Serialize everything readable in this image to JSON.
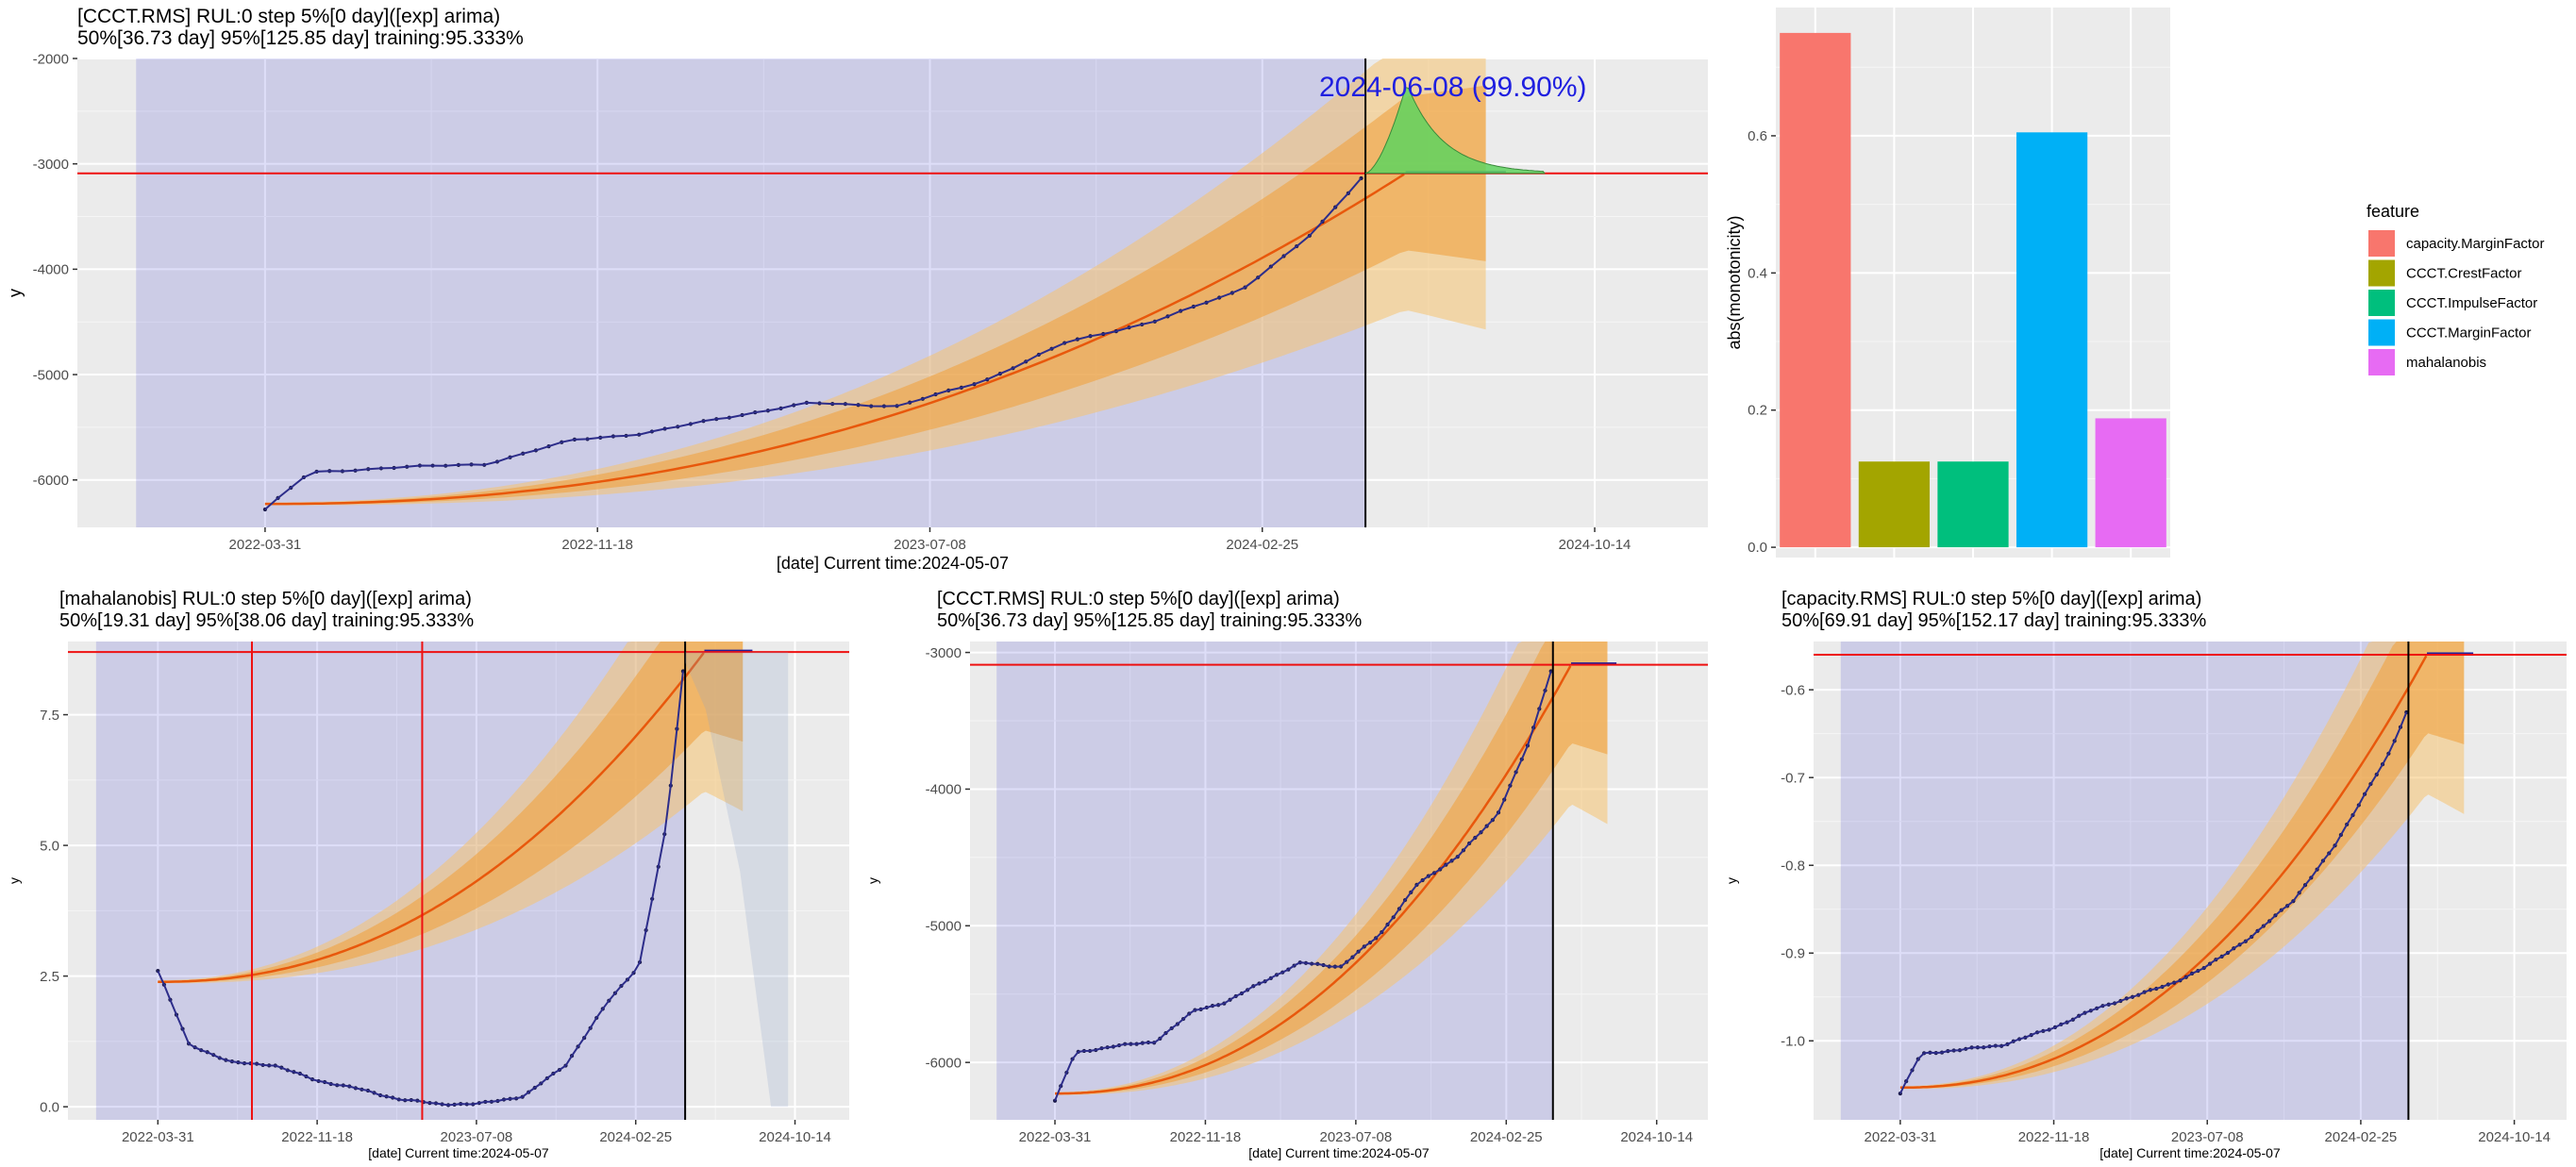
{
  "top_chart": {
    "title_line1": "[CCCT.RMS] RUL:0 step 5%[0 day]([exp] arima)",
    "title_line2": "50%[36.73 day] 95%[125.85 day] training:95.333%",
    "xlabel": "[date] Current time:2024-05-07",
    "ylabel": "y",
    "annotation": "2024-06-08 (99.90%)"
  },
  "mid_chart_left": {
    "title_line1": "[mahalanobis] RUL:0 step 5%[0 day]([exp] arima)",
    "title_line2": "50%[19.31 day] 95%[38.06 day] training:95.333%",
    "xlabel": "[date] Current time:2024-05-07",
    "ylabel": "y"
  },
  "mid_chart_center": {
    "title_line1": "[CCCT.RMS] RUL:0 step 5%[0 day]([exp] arima)",
    "title_line2": "50%[36.73 day] 95%[125.85 day] training:95.333%",
    "xlabel": "[date] Current time:2024-05-07",
    "ylabel": "y"
  },
  "mid_chart_right": {
    "title_line1": "[capacity.RMS] RUL:0 step 5%[0 day]([exp] arima)",
    "title_line2": "50%[69.91 day] 95%[152.17 day] training:95.333%",
    "xlabel": "[date] Current time:2024-05-07",
    "ylabel": "y"
  },
  "bar_chart": {
    "ylabel": "abs(monotonicity)",
    "legend_title": "feature"
  },
  "chart_data": [
    {
      "id": "top",
      "type": "line",
      "x_ticks": [
        "2022-03-31",
        "2022-11-18",
        "2023-07-08",
        "2024-02-25",
        "2024-10-14"
      ],
      "y_ticks": [
        "-2000",
        "-3000",
        "-4000",
        "-5000",
        "-6000"
      ],
      "ylim": [
        -6450,
        -2000
      ],
      "xlim": [
        "2021-11-20",
        "2025-01-01"
      ],
      "threshold": -3090,
      "current_time": "2024-05-07",
      "training_start": "2021-12-31",
      "series": [
        {
          "name": "observed",
          "x": [
            "2022-03-31",
            "2022-05-01",
            "2022-07-01",
            "2022-09-01",
            "2022-11-01",
            "2022-12-20",
            "2023-02-10",
            "2023-04-15",
            "2023-06-15",
            "2023-08-15",
            "2023-10-10",
            "2023-12-10",
            "2024-02-10",
            "2024-04-01",
            "2024-05-07"
          ],
          "y": [
            -6280,
            -5930,
            -5880,
            -5850,
            -5620,
            -5560,
            -5420,
            -5270,
            -5300,
            -5060,
            -4700,
            -4500,
            -4200,
            -3650,
            -3090
          ]
        },
        {
          "name": "fit",
          "x": [
            "2022-03-31",
            "2022-07-01",
            "2022-11-01",
            "2023-03-01",
            "2023-07-08",
            "2023-11-01",
            "2024-02-25",
            "2024-05-07",
            "2024-06-08"
          ],
          "y": [
            -5980,
            -5880,
            -5720,
            -5470,
            -5130,
            -4680,
            -4080,
            -3480,
            -3090
          ]
        }
      ]
    },
    {
      "id": "mahalanobis",
      "type": "line",
      "x_ticks": [
        "2022-03-31",
        "2022-11-18",
        "2023-07-08",
        "2024-02-25",
        "2024-10-14"
      ],
      "y_ticks": [
        "0.0",
        "2.5",
        "5.0",
        "7.5"
      ],
      "ylim": [
        -0.25,
        8.9
      ],
      "xlim": [
        "2021-11-20",
        "2025-01-01"
      ],
      "threshold": 8.7,
      "vlines": [
        "2022-08-15",
        "2023-04-20"
      ],
      "current_time": "2024-05-07",
      "training_start": "2021-12-31",
      "series": [
        {
          "name": "observed",
          "x": [
            "2022-03-31",
            "2022-05-15",
            "2022-07-15",
            "2022-09-15",
            "2022-11-18",
            "2023-01-15",
            "2023-03-15",
            "2023-05-15",
            "2023-07-08",
            "2023-09-15",
            "2023-11-15",
            "2024-01-15",
            "2024-03-01",
            "2024-04-10",
            "2024-05-07"
          ],
          "y": [
            2.6,
            1.2,
            0.85,
            0.8,
            0.5,
            0.35,
            0.15,
            0.05,
            0.05,
            0.2,
            0.8,
            2.0,
            2.7,
            5.4,
            8.7
          ]
        }
      ]
    },
    {
      "id": "ccct_rms",
      "type": "line",
      "x_ticks": [
        "2022-03-31",
        "2022-11-18",
        "2023-07-08",
        "2024-02-25",
        "2024-10-14"
      ],
      "y_ticks": [
        "-3000",
        "-4000",
        "-5000",
        "-6000"
      ],
      "ylim": [
        -6420,
        -2920
      ],
      "xlim": [
        "2021-11-20",
        "2025-01-01"
      ],
      "threshold": -3090,
      "current_time": "2024-05-07",
      "training_start": "2021-12-31",
      "series": [
        {
          "name": "observed",
          "x": [
            "2022-03-31",
            "2022-05-01",
            "2022-07-01",
            "2022-09-01",
            "2022-11-01",
            "2022-12-20",
            "2023-02-10",
            "2023-04-15",
            "2023-06-15",
            "2023-08-15",
            "2023-10-10",
            "2023-12-10",
            "2024-02-10",
            "2024-04-01",
            "2024-05-07"
          ],
          "y": [
            -6280,
            -5930,
            -5880,
            -5850,
            -5620,
            -5560,
            -5420,
            -5270,
            -5300,
            -5060,
            -4700,
            -4500,
            -4200,
            -3650,
            -3090
          ]
        }
      ]
    },
    {
      "id": "capacity_rms",
      "type": "line",
      "x_ticks": [
        "2022-03-31",
        "2022-11-18",
        "2023-07-08",
        "2024-02-25",
        "2024-10-14"
      ],
      "y_ticks": [
        "-0.6",
        "-0.7",
        "-0.8",
        "-0.9",
        "-1.0"
      ],
      "ylim": [
        -1.09,
        -0.545
      ],
      "xlim": [
        "2021-11-20",
        "2025-01-01"
      ],
      "threshold": -0.56,
      "current_time": "2024-05-07",
      "training_start": "2021-12-31",
      "series": [
        {
          "name": "observed",
          "x": [
            "2022-03-31",
            "2022-05-01",
            "2022-07-01",
            "2022-09-01",
            "2022-11-18",
            "2023-01-15",
            "2023-03-15",
            "2023-05-15",
            "2023-07-08",
            "2023-09-15",
            "2023-11-15",
            "2024-01-15",
            "2024-03-01",
            "2024-04-10",
            "2024-05-07"
          ],
          "y": [
            -1.06,
            -1.015,
            -1.01,
            -1.005,
            -0.985,
            -0.965,
            -0.95,
            -0.935,
            -0.915,
            -0.88,
            -0.84,
            -0.78,
            -0.72,
            -0.67,
            -0.62
          ]
        }
      ]
    },
    {
      "id": "monotonicity",
      "type": "bar",
      "categories": [
        "capacity.MarginFactor",
        "CCCT.CrestFactor",
        "CCCT.ImpulseFactor",
        "CCCT.MarginFactor",
        "mahalanobis"
      ],
      "values": [
        0.75,
        0.125,
        0.125,
        0.605,
        0.188
      ],
      "colors": [
        "#F8766D",
        "#A3A500",
        "#00BF7D",
        "#00B0F6",
        "#E76BF3"
      ],
      "ylim": [
        -0.015,
        0.787
      ],
      "y_ticks": [
        "0.0",
        "0.2",
        "0.4",
        "0.6"
      ],
      "legend": "right"
    }
  ]
}
